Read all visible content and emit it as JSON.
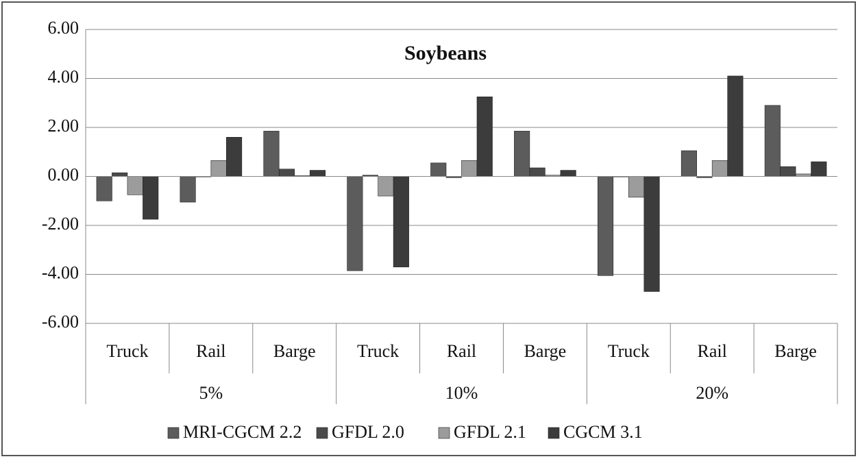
{
  "chart_data": {
    "type": "bar",
    "title": "Soybeans",
    "categories": [
      "Truck",
      "Rail",
      "Barge",
      "Truck",
      "Rail",
      "Barge",
      "Truck",
      "Rail",
      "Barge"
    ],
    "group_labels": [
      "5%",
      "10%",
      "20%"
    ],
    "series": [
      {
        "name": "MRI-CGCM 2.2",
        "color": "#5c5c5c",
        "values": [
          -1.0,
          -1.05,
          1.85,
          -3.85,
          0.55,
          1.85,
          -4.05,
          1.05,
          2.9
        ]
      },
      {
        "name": "GFDL 2.0",
        "color": "#4a4a4a",
        "values": [
          0.15,
          -0.02,
          0.3,
          0.05,
          -0.05,
          0.35,
          -0.02,
          -0.05,
          0.4
        ]
      },
      {
        "name": "GFDL 2.1",
        "color": "#9c9c9c",
        "values": [
          -0.75,
          0.65,
          0.03,
          -0.8,
          0.65,
          0.05,
          -0.85,
          0.65,
          0.1
        ]
      },
      {
        "name": "CGCM 3.1",
        "color": "#3c3c3c",
        "values": [
          -1.75,
          1.6,
          0.25,
          -3.7,
          3.25,
          0.25,
          -4.7,
          4.1,
          0.6
        ]
      }
    ],
    "ylim": [
      -6,
      6
    ],
    "yticks": [
      {
        "value": -6,
        "label": "-6.00"
      },
      {
        "value": -4,
        "label": "-4.00"
      },
      {
        "value": -2,
        "label": "-2.00"
      },
      {
        "value": 0,
        "label": "0.00"
      },
      {
        "value": 2,
        "label": "2.00"
      },
      {
        "value": 4,
        "label": "4.00"
      },
      {
        "value": 6,
        "label": "6.00"
      }
    ],
    "grid": true,
    "legend": "bottom"
  }
}
